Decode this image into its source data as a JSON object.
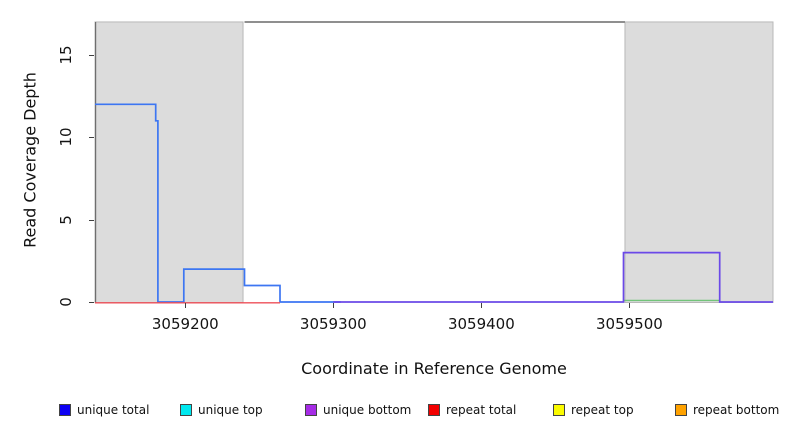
{
  "chart_data": {
    "type": "line",
    "subtype": "step-coverage-plot",
    "title": "",
    "xlabel": "Coordinate in Reference Genome",
    "ylabel": "Read Coverage Depth",
    "xlim": [
      3059139,
      3059597
    ],
    "ylim": [
      0,
      17.24
    ],
    "x_ticks": [
      3059200,
      3059300,
      3059400,
      3059500
    ],
    "y_ticks": [
      0,
      5,
      10,
      15
    ],
    "grid": false,
    "shaded_regions": [
      {
        "name": "repeat-region-left",
        "x1": 3059139,
        "x2": 3059239,
        "fill": "#dcdcdc",
        "stroke": "#b8b8b8"
      },
      {
        "name": "repeat-region-right",
        "x1": 3059497,
        "x2": 3059597,
        "fill": "#dcdcdc",
        "stroke": "#b8b8b8"
      }
    ],
    "top_clip_line": {
      "x1": 3059240,
      "x2": 3059497,
      "y": 17,
      "color": "#8f8f8f",
      "width": 2
    },
    "left_edge_line": {
      "color": "#6e6e6e"
    },
    "series": [
      {
        "name": "unique total",
        "color": "#3d76f2",
        "width": 1.7,
        "dy": 0,
        "points": [
          [
            3059139,
            12
          ],
          [
            3059180,
            12
          ],
          [
            3059180,
            11
          ],
          [
            3059181.5,
            11
          ],
          [
            3059181.5,
            0
          ],
          [
            3059199,
            0
          ],
          [
            3059199,
            2
          ],
          [
            3059240,
            2
          ],
          [
            3059240,
            1
          ],
          [
            3059264,
            1
          ],
          [
            3059264,
            0
          ],
          [
            3059305,
            0
          ]
        ]
      },
      {
        "name": "repeat total",
        "color": "#ee4f58",
        "width": 1.3,
        "dy": 0.8,
        "points": [
          [
            3059139,
            0
          ],
          [
            3059264,
            0
          ]
        ]
      },
      {
        "name": "unique top / repeat top overlap",
        "color": "#72c47a",
        "width": 1.4,
        "dy": -1.6,
        "points": [
          [
            3059496,
            0
          ],
          [
            3059561,
            0
          ]
        ]
      },
      {
        "name": "unique bottom",
        "color": "#6b49e8",
        "width": 1.7,
        "dy": 0,
        "points": [
          [
            3059300,
            0
          ],
          [
            3059496,
            0
          ],
          [
            3059496,
            3
          ],
          [
            3059561,
            3
          ],
          [
            3059561,
            0
          ],
          [
            3059597,
            0
          ]
        ]
      }
    ]
  },
  "axes": {
    "xlabel": "Coordinate in Reference Genome",
    "ylabel": "Read Coverage Depth"
  },
  "legend": {
    "items": [
      {
        "label": "unique total",
        "color": "#0d00f2"
      },
      {
        "label": "unique top",
        "color": "#00e8ef"
      },
      {
        "label": "unique bottom",
        "color": "#a62ce6"
      },
      {
        "label": "repeat total",
        "color": "#f20000"
      },
      {
        "label": "repeat top",
        "color": "#fbfb00"
      },
      {
        "label": "repeat bottom",
        "color": "#ffa200"
      }
    ]
  }
}
